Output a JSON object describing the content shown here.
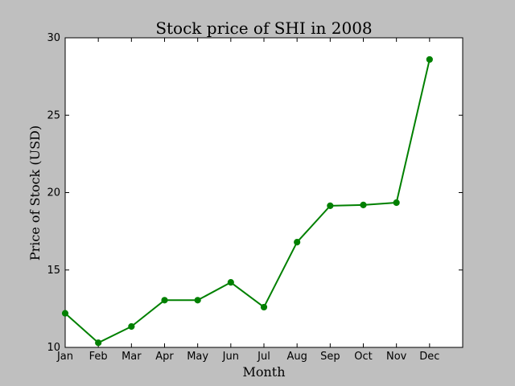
{
  "chart_data": {
    "type": "line",
    "title": "Stock price of SHI in 2008",
    "xlabel": "Month",
    "ylabel": "Price of Stock (USD)",
    "categories": [
      "Jan",
      "Feb",
      "Mar",
      "Apr",
      "May",
      "Jun",
      "Jul",
      "Aug",
      "Sep",
      "Oct",
      "Nov",
      "Dec"
    ],
    "values": [
      12.2,
      10.3,
      11.35,
      13.05,
      13.05,
      14.2,
      12.6,
      16.8,
      19.15,
      19.2,
      19.35,
      28.6
    ],
    "ylim": [
      10,
      30
    ],
    "yticks": [
      "10",
      "15",
      "20",
      "25",
      "30"
    ],
    "grid": false,
    "line_color": "#008000",
    "axes_background": "#ffffff",
    "figure_background": "#bfbfbf"
  }
}
